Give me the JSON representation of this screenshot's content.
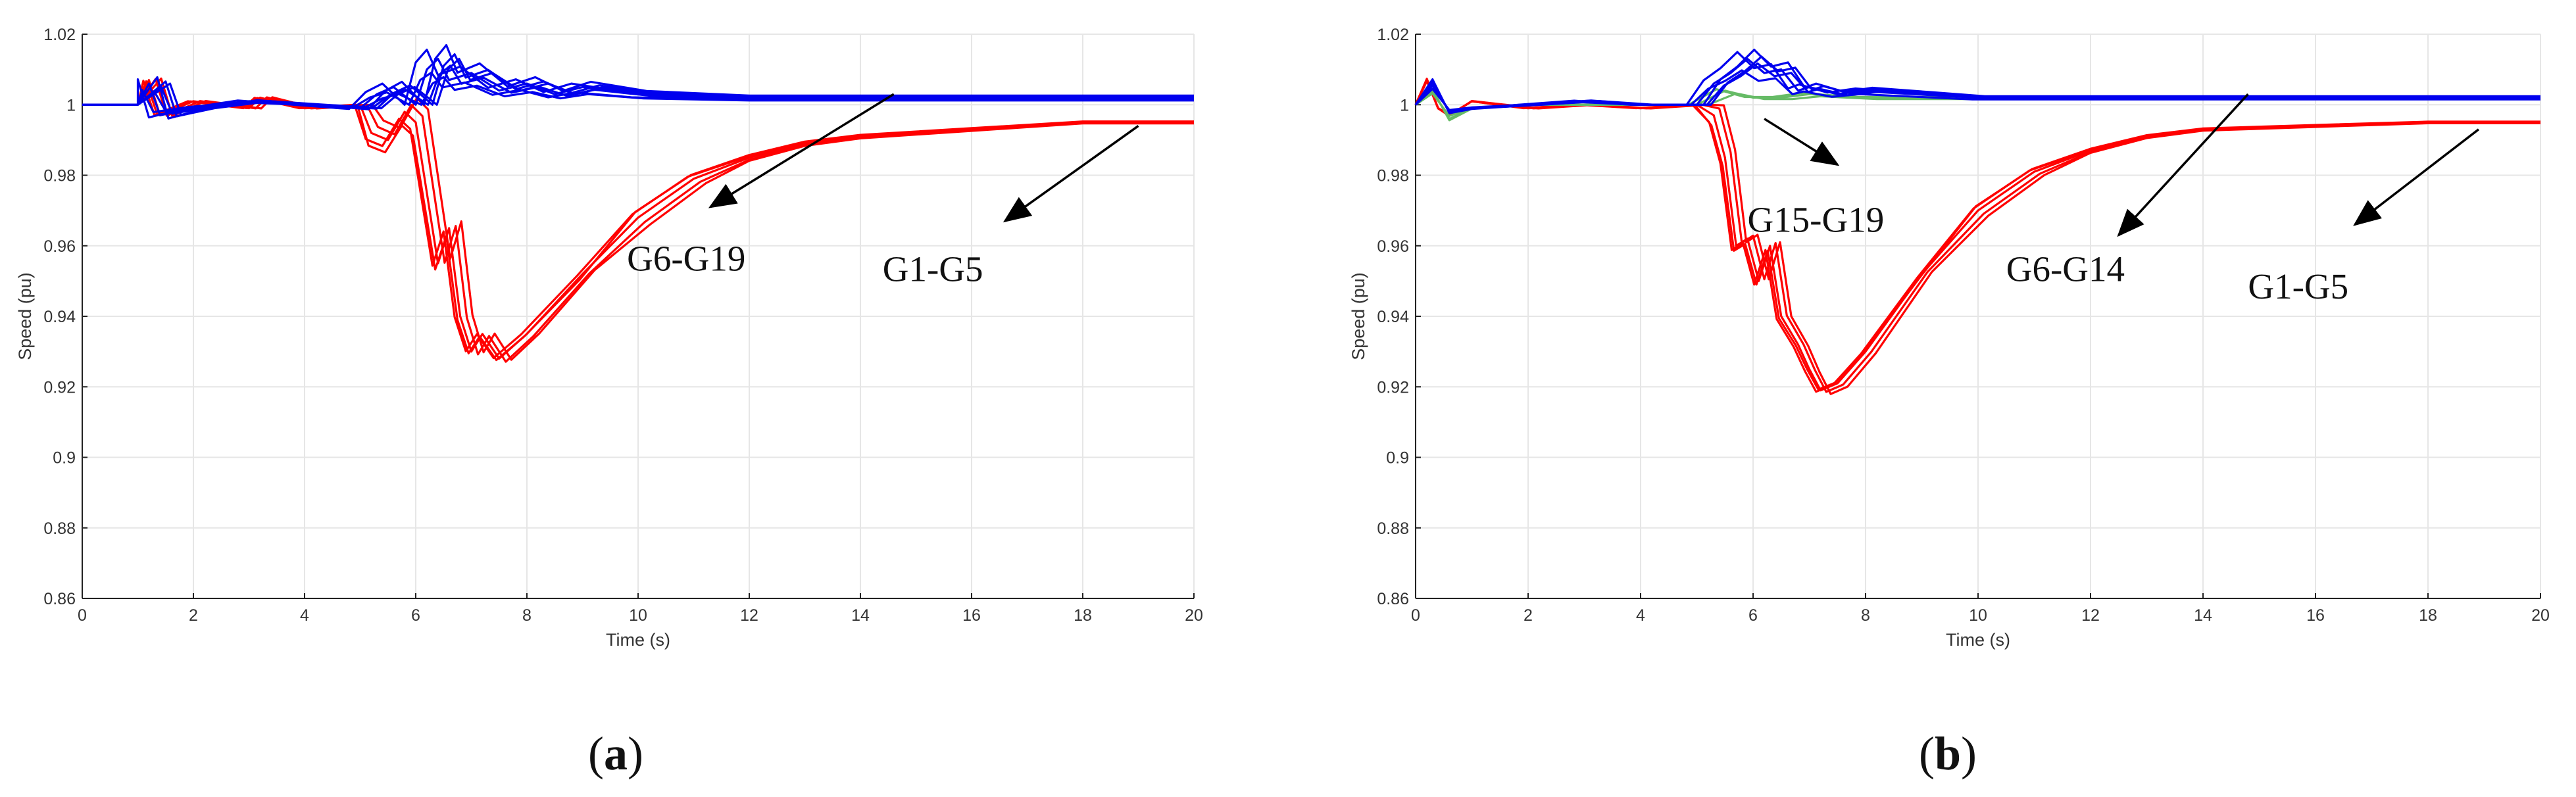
{
  "chart_data": [
    {
      "type": "line",
      "panel_label": "a",
      "xlabel": "Time (s)",
      "ylabel": "Speed (pu)",
      "xlim": [
        0,
        20
      ],
      "ylim": [
        0.86,
        1.02
      ],
      "xticks": [
        0,
        2,
        4,
        6,
        8,
        10,
        12,
        14,
        16,
        18,
        20
      ],
      "yticks": [
        0.86,
        0.88,
        0.9,
        0.92,
        0.94,
        0.96,
        0.98,
        1,
        1.02
      ],
      "grid": true,
      "colors": {
        "G1-G5": "#ff0000",
        "G6-G19": "#0000ee"
      },
      "series": [
        {
          "name": "G1-G5",
          "color": "#ff0000",
          "count": 5,
          "variant": "red_a",
          "x": [
            0,
            1,
            1.2,
            1.4,
            2,
            3,
            3.2,
            4,
            5,
            5.2,
            5.5,
            5.8,
            6,
            6.2,
            6.4,
            6.6,
            6.8,
            7,
            7.2,
            7.5,
            8,
            9,
            10,
            11,
            12,
            13,
            14,
            16,
            18,
            20
          ],
          "y": [
            1.0,
            1.0,
            1.007,
            0.997,
            1.001,
            0.999,
            1.002,
            0.999,
            1.0,
            0.992,
            0.99,
            0.998,
            0.995,
            0.975,
            0.955,
            0.965,
            0.94,
            0.93,
            0.935,
            0.928,
            0.935,
            0.952,
            0.968,
            0.979,
            0.985,
            0.989,
            0.991,
            0.993,
            0.995,
            0.995
          ]
        },
        {
          "name": "G6-G19",
          "color": "#0000ee",
          "count": 8,
          "variant": "blue_a",
          "x": [
            0,
            1,
            1.2,
            1.4,
            2,
            3,
            4,
            5,
            5.3,
            5.6,
            6,
            6.2,
            6.4,
            6.6,
            7,
            7.5,
            8,
            8.5,
            9,
            10,
            12,
            14,
            16,
            18,
            20
          ],
          "y": [
            1.0,
            1.0,
            1.006,
            0.997,
            0.999,
            1.001,
            1.0,
            0.999,
            1.003,
            1.005,
            1.0,
            1.01,
            1.013,
            1.007,
            1.009,
            1.004,
            1.006,
            1.003,
            1.005,
            1.003,
            1.002,
            1.002,
            1.002,
            1.002,
            1.002
          ]
        }
      ],
      "annotations": [
        {
          "text": "G6-G19",
          "x": 9.8,
          "y": 0.953,
          "arrow_from": [
            14.6,
            1.003
          ],
          "arrow_to": [
            11.3,
            0.971
          ]
        },
        {
          "text": "G1-G5",
          "x": 14.4,
          "y": 0.95,
          "arrow_from": [
            19,
            0.994
          ],
          "arrow_to": [
            16.6,
            0.967
          ]
        }
      ]
    },
    {
      "type": "line",
      "panel_label": "b",
      "xlabel": "Time (s)",
      "ylabel": "Speed (pu)",
      "xlim": [
        0,
        20
      ],
      "ylim": [
        0.86,
        1.02
      ],
      "xticks": [
        0,
        2,
        4,
        6,
        8,
        10,
        12,
        14,
        16,
        18,
        20
      ],
      "yticks": [
        0.86,
        0.88,
        0.9,
        0.92,
        0.94,
        0.96,
        0.98,
        1,
        1.02
      ],
      "grid": true,
      "colors": {
        "G1-G5": "#ff0000",
        "G6-G14": "#0000ee",
        "G15-G19": "#66bb66"
      },
      "series": [
        {
          "name": "G1-G5",
          "color": "#ff0000",
          "count": 5,
          "variant": "red_b",
          "x": [
            0,
            0.2,
            0.4,
            0.6,
            1,
            2,
            3,
            4,
            5,
            5.3,
            5.5,
            5.7,
            5.9,
            6.1,
            6.3,
            6.5,
            6.8,
            7,
            7.2,
            7.5,
            8,
            9,
            10,
            11,
            12,
            13,
            14,
            16,
            18,
            20
          ],
          "y": [
            1.0,
            1.007,
            0.999,
            0.997,
            1.001,
            0.999,
            1.0,
            0.999,
            1.0,
            0.997,
            0.985,
            0.96,
            0.962,
            0.95,
            0.96,
            0.94,
            0.932,
            0.925,
            0.919,
            0.921,
            0.93,
            0.952,
            0.97,
            0.981,
            0.987,
            0.991,
            0.993,
            0.994,
            0.995,
            0.995
          ]
        },
        {
          "name": "G15-G19",
          "color": "#66bb66",
          "count": 3,
          "variant": "green_b",
          "x": [
            0,
            0.3,
            0.6,
            1,
            2,
            3,
            4,
            5,
            5.5,
            6,
            6.5,
            7,
            8,
            10,
            14,
            20
          ],
          "y": [
            1.0,
            1.004,
            0.996,
            0.999,
            1.0,
            1.0,
            1.0,
            1.0,
            1.004,
            1.002,
            1.002,
            1.003,
            1.002,
            1.002,
            1.002,
            1.002
          ]
        },
        {
          "name": "G6-G14",
          "color": "#0000ee",
          "count": 6,
          "variant": "blue_b",
          "x": [
            0,
            0.3,
            0.6,
            1,
            2,
            3,
            4,
            5,
            5.3,
            5.6,
            5.9,
            6.2,
            6.5,
            6.8,
            7,
            7.5,
            8,
            9,
            10,
            12,
            14,
            16,
            18,
            20
          ],
          "y": [
            1.0,
            1.006,
            0.998,
            0.999,
            1.0,
            1.001,
            1.0,
            1.0,
            1.006,
            1.009,
            1.013,
            1.009,
            1.01,
            1.004,
            1.005,
            1.003,
            1.004,
            1.003,
            1.002,
            1.002,
            1.002,
            1.002,
            1.002,
            1.002
          ]
        }
      ],
      "annotations": [
        {
          "text": "G15-G19",
          "x": 5.9,
          "y": 0.964,
          "arrow_from": [
            6.2,
            0.996
          ],
          "arrow_to": [
            7.5,
            0.983
          ]
        },
        {
          "text": "G6-G14",
          "x": 10.5,
          "y": 0.95,
          "arrow_from": [
            14.8,
            1.003
          ],
          "arrow_to": [
            12.5,
            0.963
          ]
        },
        {
          "text": "G1-G5",
          "x": 14.8,
          "y": 0.945,
          "arrow_from": [
            18.9,
            0.993
          ],
          "arrow_to": [
            16.7,
            0.966
          ]
        }
      ]
    }
  ]
}
